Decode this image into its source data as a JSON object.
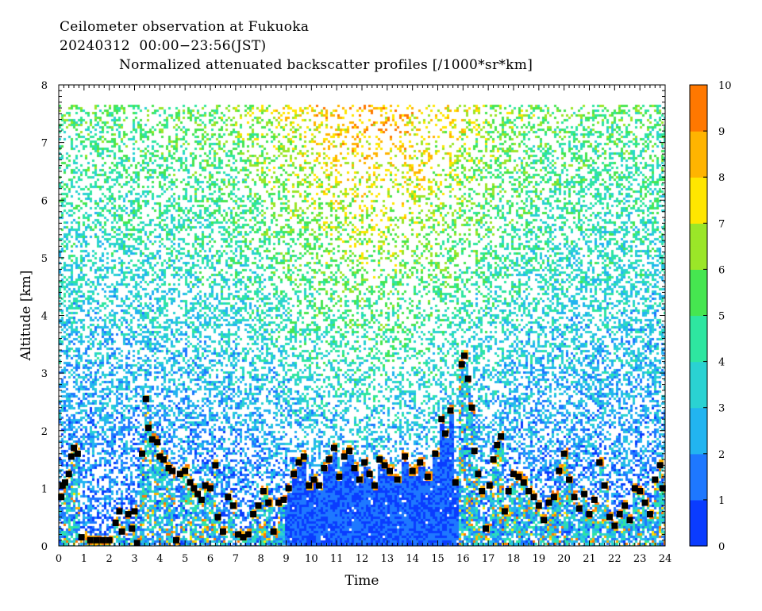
{
  "chart_data": {
    "type": "heatmap",
    "title": "Ceilometer observation at Fukuoka",
    "subtitle": "20240312  00:00−23:56(JST)",
    "plot_title": "Normalized attenuated backscatter profiles [/1000*sr*km]",
    "xlabel": "Time",
    "ylabel": "Altitude [km]",
    "xlim": [
      0,
      24
    ],
    "ylim": [
      0,
      8
    ],
    "x_ticks": [
      "0",
      "1",
      "2",
      "3",
      "4",
      "5",
      "6",
      "7",
      "8",
      "9",
      "10",
      "11",
      "12",
      "13",
      "14",
      "15",
      "16",
      "17",
      "18",
      "19",
      "20",
      "21",
      "22",
      "23",
      "24"
    ],
    "y_ticks": [
      "0",
      "1",
      "2",
      "3",
      "4",
      "5",
      "6",
      "7",
      "8"
    ],
    "data_top_km": 7.65,
    "colorbar": {
      "range": [
        0,
        10
      ],
      "ticks": [
        "0",
        "1",
        "2",
        "3",
        "4",
        "5",
        "6",
        "7",
        "8",
        "9",
        "10"
      ],
      "colors": [
        "#0a3cff",
        "#1e78ff",
        "#22b4f0",
        "#2ad2d2",
        "#2ee6a0",
        "#46e650",
        "#9be628",
        "#ffe600",
        "#ffb400",
        "#ff7800",
        "#f03c0a"
      ]
    },
    "cloud_base_markers": [
      {
        "t": 0.1,
        "alt": 0.85
      },
      {
        "t": 0.15,
        "alt": 1.05
      },
      {
        "t": 0.25,
        "alt": 1.1
      },
      {
        "t": 0.4,
        "alt": 1.25
      },
      {
        "t": 0.5,
        "alt": 1.55
      },
      {
        "t": 0.6,
        "alt": 1.7
      },
      {
        "t": 0.75,
        "alt": 1.6
      },
      {
        "t": 0.9,
        "alt": 0.15
      },
      {
        "t": 1.25,
        "alt": 0.1
      },
      {
        "t": 1.5,
        "alt": 0.1
      },
      {
        "t": 1.75,
        "alt": 0.1
      },
      {
        "t": 2.0,
        "alt": 0.1
      },
      {
        "t": 2.25,
        "alt": 0.4
      },
      {
        "t": 2.4,
        "alt": 0.6
      },
      {
        "t": 2.5,
        "alt": 0.25
      },
      {
        "t": 2.75,
        "alt": 0.55
      },
      {
        "t": 2.9,
        "alt": 0.3
      },
      {
        "t": 3.0,
        "alt": 0.6
      },
      {
        "t": 3.1,
        "alt": 0.05
      },
      {
        "t": 3.3,
        "alt": 1.6
      },
      {
        "t": 3.45,
        "alt": 2.55
      },
      {
        "t": 3.55,
        "alt": 2.05
      },
      {
        "t": 3.7,
        "alt": 1.85
      },
      {
        "t": 3.9,
        "alt": 1.8
      },
      {
        "t": 4.0,
        "alt": 1.55
      },
      {
        "t": 4.15,
        "alt": 1.5
      },
      {
        "t": 4.35,
        "alt": 1.35
      },
      {
        "t": 4.5,
        "alt": 1.3
      },
      {
        "t": 4.65,
        "alt": 0.1
      },
      {
        "t": 4.8,
        "alt": 1.25
      },
      {
        "t": 5.0,
        "alt": 1.3
      },
      {
        "t": 5.2,
        "alt": 1.1
      },
      {
        "t": 5.35,
        "alt": 1.0
      },
      {
        "t": 5.5,
        "alt": 0.9
      },
      {
        "t": 5.65,
        "alt": 0.8
      },
      {
        "t": 5.8,
        "alt": 1.05
      },
      {
        "t": 6.0,
        "alt": 1.0
      },
      {
        "t": 6.2,
        "alt": 1.4
      },
      {
        "t": 6.3,
        "alt": 0.5
      },
      {
        "t": 6.5,
        "alt": 0.25
      },
      {
        "t": 6.7,
        "alt": 0.85
      },
      {
        "t": 6.9,
        "alt": 0.7
      },
      {
        "t": 7.1,
        "alt": 0.2
      },
      {
        "t": 7.3,
        "alt": 0.15
      },
      {
        "t": 7.5,
        "alt": 0.2
      },
      {
        "t": 7.7,
        "alt": 0.55
      },
      {
        "t": 7.9,
        "alt": 0.7
      },
      {
        "t": 8.1,
        "alt": 0.95
      },
      {
        "t": 8.3,
        "alt": 0.75
      },
      {
        "t": 8.5,
        "alt": 0.25
      },
      {
        "t": 8.7,
        "alt": 0.75
      },
      {
        "t": 8.9,
        "alt": 0.8
      },
      {
        "t": 9.1,
        "alt": 1.0
      },
      {
        "t": 9.3,
        "alt": 1.25
      },
      {
        "t": 9.5,
        "alt": 1.45
      },
      {
        "t": 9.7,
        "alt": 1.55
      },
      {
        "t": 9.9,
        "alt": 1.05
      },
      {
        "t": 10.1,
        "alt": 1.15
      },
      {
        "t": 10.3,
        "alt": 1.05
      },
      {
        "t": 10.5,
        "alt": 1.35
      },
      {
        "t": 10.7,
        "alt": 1.5
      },
      {
        "t": 10.9,
        "alt": 1.7
      },
      {
        "t": 11.1,
        "alt": 1.2
      },
      {
        "t": 11.3,
        "alt": 1.55
      },
      {
        "t": 11.5,
        "alt": 1.65
      },
      {
        "t": 11.7,
        "alt": 1.35
      },
      {
        "t": 11.9,
        "alt": 1.15
      },
      {
        "t": 12.1,
        "alt": 1.45
      },
      {
        "t": 12.3,
        "alt": 1.25
      },
      {
        "t": 12.5,
        "alt": 1.05
      },
      {
        "t": 12.7,
        "alt": 1.5
      },
      {
        "t": 12.9,
        "alt": 1.4
      },
      {
        "t": 13.1,
        "alt": 1.3
      },
      {
        "t": 13.4,
        "alt": 1.15
      },
      {
        "t": 13.7,
        "alt": 1.55
      },
      {
        "t": 14.0,
        "alt": 1.3
      },
      {
        "t": 14.3,
        "alt": 1.45
      },
      {
        "t": 14.6,
        "alt": 1.2
      },
      {
        "t": 14.9,
        "alt": 1.6
      },
      {
        "t": 15.15,
        "alt": 2.2
      },
      {
        "t": 15.3,
        "alt": 1.95
      },
      {
        "t": 15.5,
        "alt": 2.35
      },
      {
        "t": 15.7,
        "alt": 1.1
      },
      {
        "t": 15.95,
        "alt": 3.15
      },
      {
        "t": 16.05,
        "alt": 3.3
      },
      {
        "t": 16.2,
        "alt": 2.9
      },
      {
        "t": 16.35,
        "alt": 2.4
      },
      {
        "t": 16.45,
        "alt": 1.65
      },
      {
        "t": 16.6,
        "alt": 1.25
      },
      {
        "t": 16.75,
        "alt": 0.95
      },
      {
        "t": 16.9,
        "alt": 0.3
      },
      {
        "t": 17.05,
        "alt": 1.05
      },
      {
        "t": 17.2,
        "alt": 1.5
      },
      {
        "t": 17.35,
        "alt": 1.75
      },
      {
        "t": 17.5,
        "alt": 1.9
      },
      {
        "t": 17.65,
        "alt": 0.6
      },
      {
        "t": 17.8,
        "alt": 0.95
      },
      {
        "t": 18.0,
        "alt": 1.25
      },
      {
        "t": 18.2,
        "alt": 1.2
      },
      {
        "t": 18.4,
        "alt": 1.1
      },
      {
        "t": 18.6,
        "alt": 0.95
      },
      {
        "t": 18.8,
        "alt": 0.85
      },
      {
        "t": 19.0,
        "alt": 0.7
      },
      {
        "t": 19.2,
        "alt": 0.45
      },
      {
        "t": 19.4,
        "alt": 0.75
      },
      {
        "t": 19.6,
        "alt": 0.85
      },
      {
        "t": 19.8,
        "alt": 1.3
      },
      {
        "t": 20.0,
        "alt": 1.6
      },
      {
        "t": 20.2,
        "alt": 1.15
      },
      {
        "t": 20.4,
        "alt": 0.85
      },
      {
        "t": 20.6,
        "alt": 0.65
      },
      {
        "t": 20.8,
        "alt": 0.9
      },
      {
        "t": 21.0,
        "alt": 0.55
      },
      {
        "t": 21.2,
        "alt": 0.8
      },
      {
        "t": 21.4,
        "alt": 1.45
      },
      {
        "t": 21.6,
        "alt": 1.05
      },
      {
        "t": 21.8,
        "alt": 0.5
      },
      {
        "t": 22.0,
        "alt": 0.35
      },
      {
        "t": 22.2,
        "alt": 0.55
      },
      {
        "t": 22.4,
        "alt": 0.7
      },
      {
        "t": 22.6,
        "alt": 0.45
      },
      {
        "t": 22.8,
        "alt": 1.0
      },
      {
        "t": 23.0,
        "alt": 0.95
      },
      {
        "t": 23.2,
        "alt": 0.75
      },
      {
        "t": 23.4,
        "alt": 0.55
      },
      {
        "t": 23.6,
        "alt": 1.15
      },
      {
        "t": 23.8,
        "alt": 1.4
      },
      {
        "t": 23.9,
        "alt": 1.0
      }
    ]
  }
}
